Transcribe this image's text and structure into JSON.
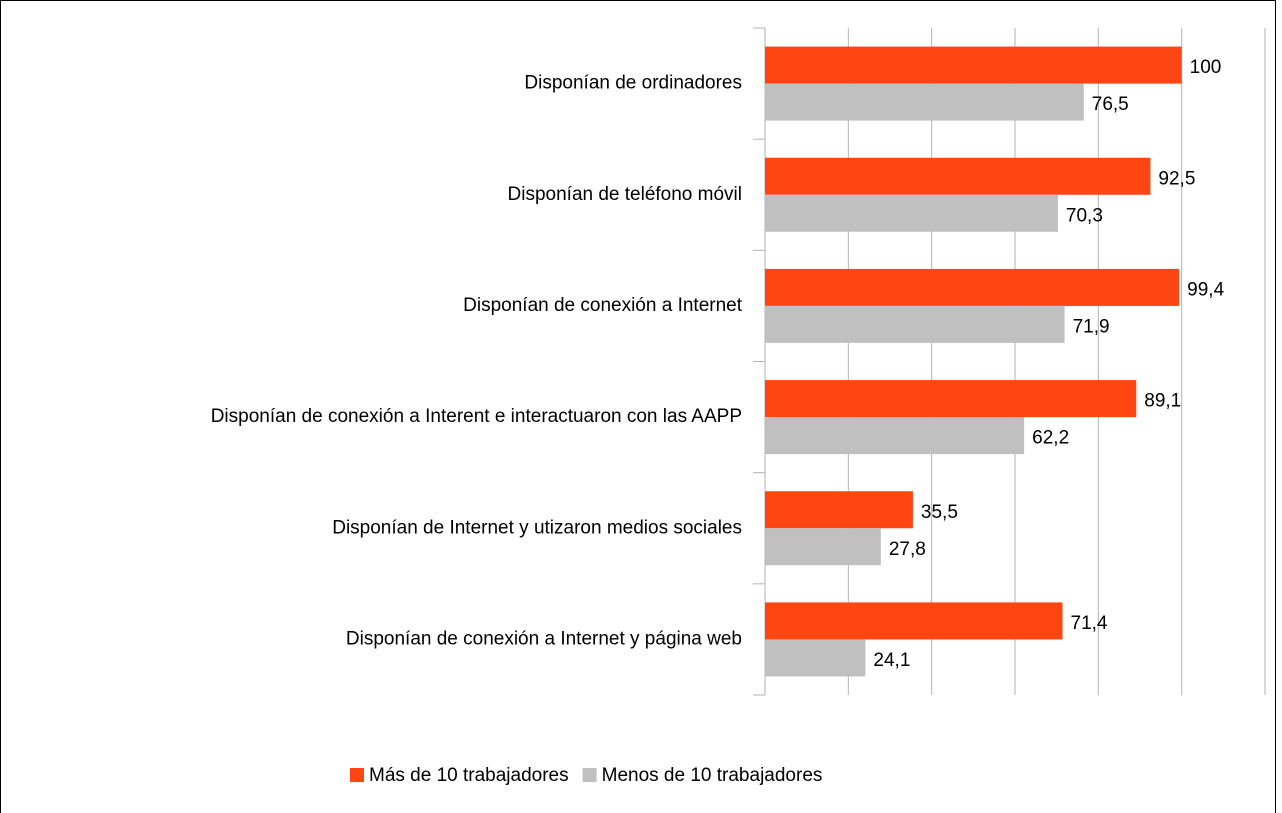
{
  "chart_data": {
    "type": "hbar",
    "categories": [
      "Disponían de ordinadores",
      "Disponían de teléfono móvil",
      "Disponían de conexión a Internet",
      "Disponían de conexión a Interent e interactuaron con las AAPP",
      "Disponían de Internet y utizaron medios sociales",
      "Disponían de conexión a Internet y página web"
    ],
    "series": [
      {
        "name": "Más de 10 trabajadores",
        "color": "#ff4512",
        "values": [
          100,
          92.5,
          99.4,
          89.1,
          35.5,
          71.4
        ],
        "value_labels": [
          "100",
          "92,5",
          "99,4",
          "89,1",
          "35,5",
          "71,4"
        ]
      },
      {
        "name": "Menos de 10 trabajadores",
        "color": "#c0c0c0",
        "values": [
          76.5,
          70.3,
          71.9,
          62.2,
          27.8,
          24.1
        ],
        "value_labels": [
          "76,5",
          "70,3",
          "71,9",
          "62,2",
          "27,8",
          "24,1"
        ]
      }
    ],
    "xlim": [
      0,
      120
    ],
    "xticks": [
      0,
      20,
      40,
      60,
      80,
      100,
      120
    ],
    "grid": true,
    "legend": "bottom"
  }
}
